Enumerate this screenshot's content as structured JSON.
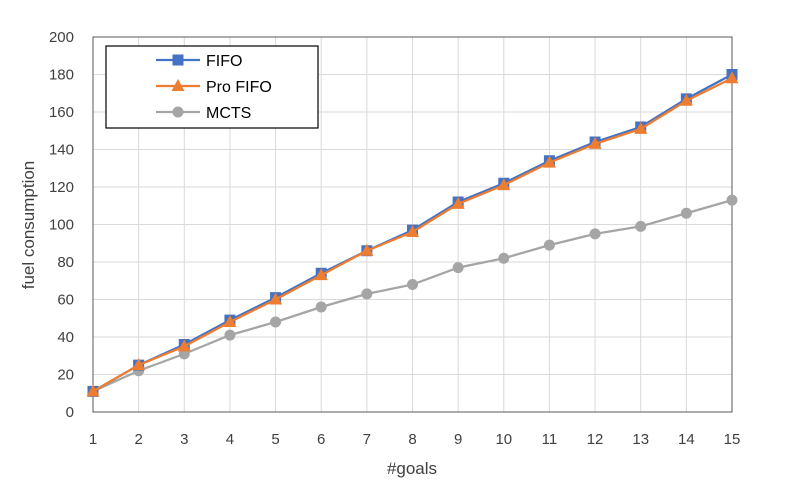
{
  "chart_data": {
    "type": "line",
    "title": "",
    "xlabel": "#goals",
    "ylabel": "fuel consumption",
    "x": [
      1,
      2,
      3,
      4,
      5,
      6,
      7,
      8,
      9,
      10,
      11,
      12,
      13,
      14,
      15
    ],
    "xticks": [
      "1",
      "2",
      "3",
      "4",
      "5",
      "6",
      "7",
      "8",
      "9",
      "10",
      "11",
      "12",
      "13",
      "14",
      "15"
    ],
    "ylim": [
      0,
      200
    ],
    "yticks": [
      "0",
      "20",
      "40",
      "60",
      "80",
      "100",
      "120",
      "140",
      "160",
      "180",
      "200"
    ],
    "grid": true,
    "legend_position": "top-left",
    "series": [
      {
        "name": "FIFO",
        "marker": "square",
        "color": "#4472C4",
        "values": [
          11,
          25,
          36,
          49,
          61,
          74,
          86,
          97,
          112,
          122,
          134,
          144,
          152,
          167,
          180
        ]
      },
      {
        "name": "Pro FIFO",
        "marker": "triangle",
        "color": "#ED7D31",
        "values": [
          11,
          25,
          35,
          48,
          60,
          73,
          86,
          96,
          111,
          121,
          133,
          143,
          151,
          166,
          178
        ]
      },
      {
        "name": "MCTS",
        "marker": "circle",
        "color": "#A5A5A5",
        "values": [
          11,
          22,
          31,
          41,
          48,
          56,
          63,
          68,
          77,
          82,
          89,
          95,
          99,
          106,
          113
        ]
      }
    ]
  }
}
